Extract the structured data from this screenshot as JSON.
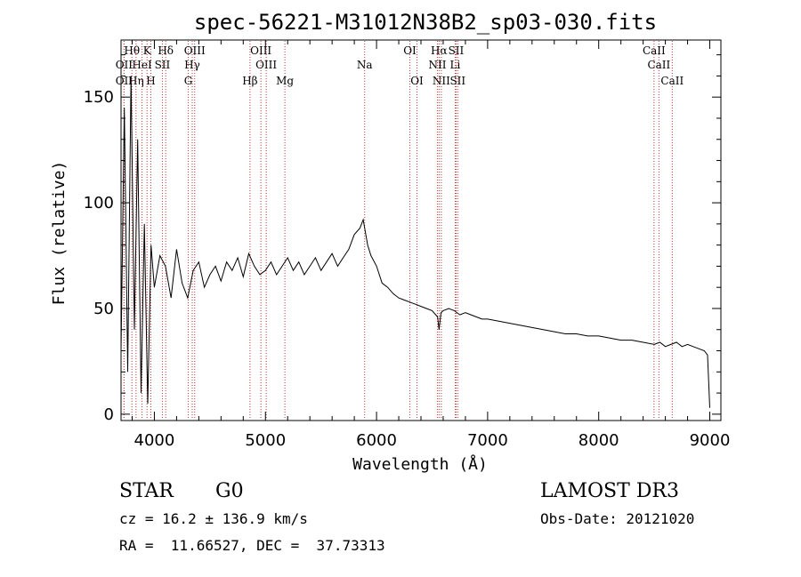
{
  "chart_data": {
    "type": "line",
    "title": "spec-56221-M31012N38B2_sp03-030.fits",
    "xlabel": "Wavelength (Å)",
    "ylabel": "Flux (relative)",
    "xlim": [
      3700,
      9100
    ],
    "ylim": [
      -3,
      177
    ],
    "xticks": [
      4000,
      5000,
      6000,
      7000,
      8000,
      9000
    ],
    "yticks": [
      0,
      50,
      100,
      150
    ],
    "series": [
      {
        "name": "flux",
        "x": [
          3700,
          3730,
          3760,
          3790,
          3820,
          3850,
          3880,
          3910,
          3940,
          3970,
          4000,
          4050,
          4100,
          4150,
          4200,
          4250,
          4300,
          4350,
          4400,
          4450,
          4500,
          4550,
          4600,
          4650,
          4700,
          4750,
          4800,
          4850,
          4900,
          4950,
          5000,
          5050,
          5100,
          5150,
          5200,
          5250,
          5300,
          5350,
          5400,
          5450,
          5500,
          5550,
          5600,
          5650,
          5700,
          5750,
          5800,
          5850,
          5880,
          5900,
          5920,
          5950,
          6000,
          6050,
          6100,
          6150,
          6200,
          6250,
          6300,
          6350,
          6400,
          6450,
          6500,
          6550,
          6563,
          6580,
          6600,
          6650,
          6700,
          6750,
          6800,
          6850,
          6900,
          6950,
          7000,
          7100,
          7200,
          7300,
          7400,
          7500,
          7600,
          7700,
          7800,
          7900,
          8000,
          8100,
          8200,
          8300,
          8400,
          8500,
          8550,
          8600,
          8650,
          8700,
          8750,
          8800,
          8850,
          8900,
          8950,
          8980,
          9000
        ],
        "y": [
          30,
          145,
          20,
          160,
          40,
          130,
          10,
          90,
          5,
          80,
          60,
          75,
          70,
          55,
          78,
          62,
          55,
          68,
          72,
          60,
          66,
          70,
          63,
          72,
          68,
          74,
          65,
          76,
          70,
          66,
          68,
          72,
          66,
          70,
          74,
          68,
          72,
          66,
          70,
          74,
          68,
          72,
          76,
          70,
          74,
          78,
          85,
          88,
          92,
          86,
          80,
          75,
          70,
          62,
          60,
          57,
          55,
          54,
          53,
          52,
          51,
          50,
          49,
          46,
          40,
          48,
          49,
          50,
          49,
          47,
          48,
          47,
          46,
          45,
          45,
          44,
          43,
          42,
          41,
          40,
          39,
          38,
          38,
          37,
          37,
          36,
          35,
          35,
          34,
          33,
          34,
          32,
          33,
          34,
          32,
          33,
          32,
          31,
          30,
          28,
          3
        ]
      }
    ],
    "spectral_lines": [
      {
        "label": "Hθ",
        "x": 3798,
        "row": 1
      },
      {
        "label": "OII",
        "x": 3727,
        "row": 2
      },
      {
        "label": "OII",
        "x": 3727,
        "row": 3
      },
      {
        "label": "Hη",
        "x": 3835,
        "row": 3
      },
      {
        "label": "K",
        "x": 3934,
        "row": 1
      },
      {
        "label": "HeI",
        "x": 3889,
        "row": 2
      },
      {
        "label": "H",
        "x": 3968,
        "row": 3
      },
      {
        "label": "Hδ",
        "x": 4102,
        "row": 1
      },
      {
        "label": "SII",
        "x": 4072,
        "row": 2
      },
      {
        "label": "OIII",
        "x": 4363,
        "row": 1
      },
      {
        "label": "Hγ",
        "x": 4341,
        "row": 2
      },
      {
        "label": "G",
        "x": 4305,
        "row": 3
      },
      {
        "label": "OIII",
        "x": 4959,
        "row": 1
      },
      {
        "label": "OIII",
        "x": 5007,
        "row": 2
      },
      {
        "label": "Hβ",
        "x": 4861,
        "row": 3
      },
      {
        "label": "Mg",
        "x": 5175,
        "row": 3
      },
      {
        "label": "Na",
        "x": 5893,
        "row": 2
      },
      {
        "label": "OI",
        "x": 6300,
        "row": 1
      },
      {
        "label": "OI",
        "x": 6364,
        "row": 3
      },
      {
        "label": "Hα",
        "x": 6563,
        "row": 1
      },
      {
        "label": "NII",
        "x": 6548,
        "row": 2
      },
      {
        "label": "NII",
        "x": 6583,
        "row": 3
      },
      {
        "label": "SII",
        "x": 6716,
        "row": 1
      },
      {
        "label": "Li",
        "x": 6708,
        "row": 2
      },
      {
        "label": "SII",
        "x": 6731,
        "row": 3
      },
      {
        "label": "CaII",
        "x": 8498,
        "row": 1
      },
      {
        "label": "CaII",
        "x": 8542,
        "row": 2
      },
      {
        "label": "CaII",
        "x": 8662,
        "row": 3
      }
    ]
  },
  "info": {
    "object_class": "STAR",
    "subclass": "G0",
    "survey": "LAMOST DR3",
    "redshift": "cz = 16.2 ± 136.9 km/s",
    "obs_date": "Obs-Date: 20121020",
    "coords": "RA =  11.66527, DEC =  37.73313"
  },
  "colors": {
    "spectrum": "#000000",
    "marker_line": "#cc3333"
  }
}
